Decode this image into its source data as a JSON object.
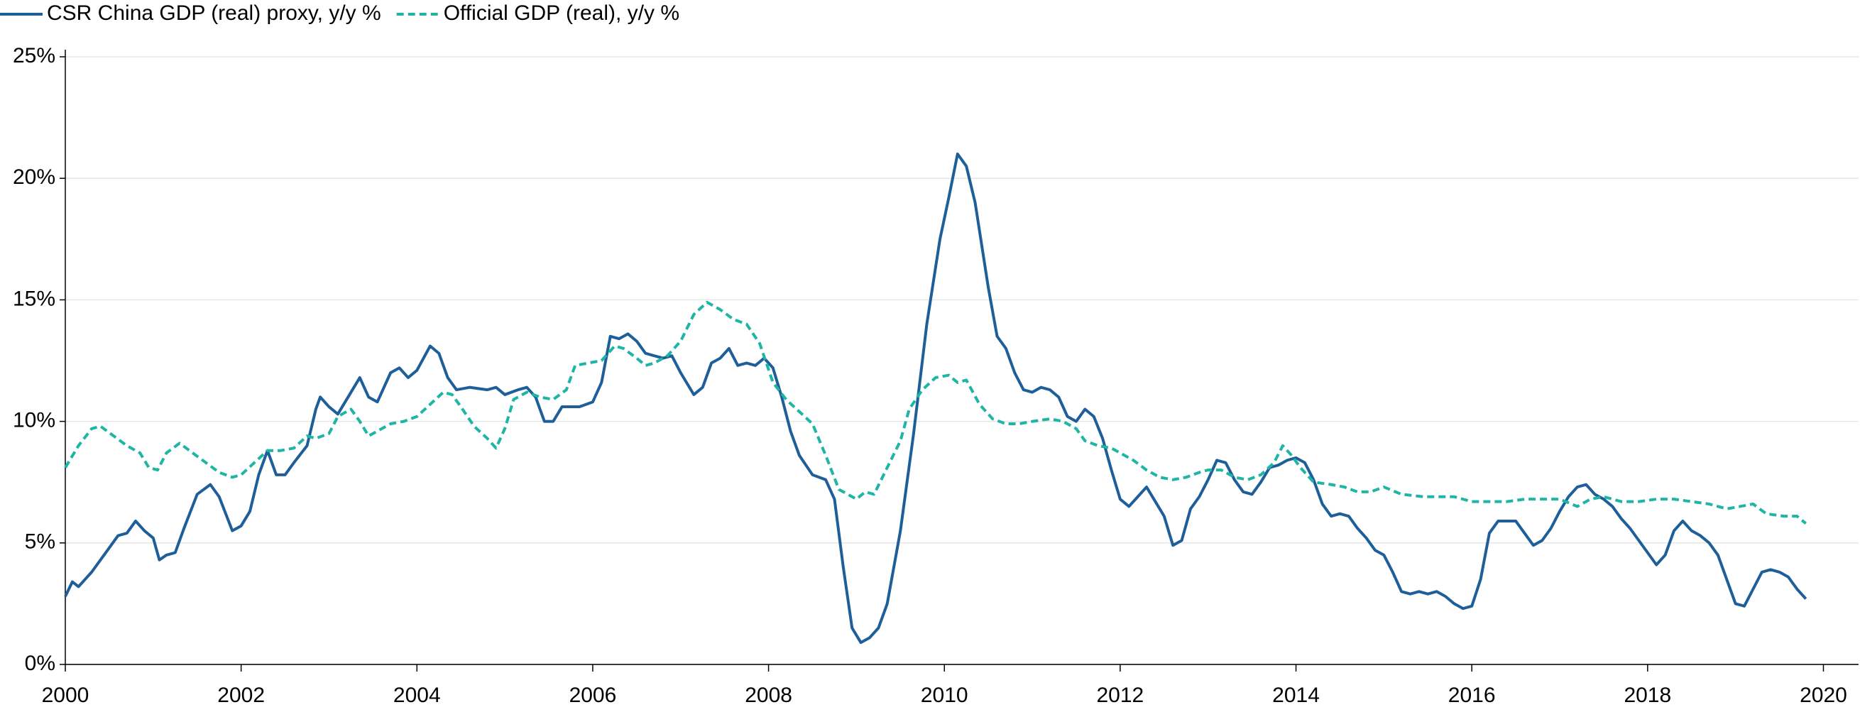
{
  "chart_data": {
    "type": "line",
    "series": [
      {
        "name": "CSR China GDP (real) proxy, y/y %",
        "color": "#1f5f99",
        "dash": "solid",
        "x": [
          2000.0,
          2000.08,
          2000.15,
          2000.3,
          2000.5,
          2000.6,
          2000.7,
          2000.8,
          2000.9,
          2001.0,
          2001.07,
          2001.15,
          2001.25,
          2001.35,
          2001.5,
          2001.65,
          2001.75,
          2001.9,
          2002.0,
          2002.1,
          2002.2,
          2002.3,
          2002.4,
          2002.5,
          2002.6,
          2002.75,
          2002.85,
          2002.9,
          2003.0,
          2003.1,
          2003.2,
          2003.35,
          2003.45,
          2003.55,
          2003.7,
          2003.8,
          2003.9,
          2004.0,
          2004.15,
          2004.25,
          2004.35,
          2004.45,
          2004.6,
          2004.8,
          2004.9,
          2005.0,
          2005.15,
          2005.25,
          2005.35,
          2005.45,
          2005.55,
          2005.65,
          2005.85,
          2006.0,
          2006.1,
          2006.2,
          2006.3,
          2006.4,
          2006.5,
          2006.6,
          2006.7,
          2006.8,
          2006.9,
          2007.0,
          2007.15,
          2007.25,
          2007.35,
          2007.45,
          2007.55,
          2007.65,
          2007.75,
          2007.85,
          2007.95,
          2008.05,
          2008.15,
          2008.25,
          2008.35,
          2008.5,
          2008.65,
          2008.75,
          2008.85,
          2008.95,
          2009.05,
          2009.15,
          2009.25,
          2009.35,
          2009.5,
          2009.65,
          2009.8,
          2009.95,
          2010.05,
          2010.15,
          2010.25,
          2010.35,
          2010.5,
          2010.6,
          2010.7,
          2010.8,
          2010.9,
          2011.0,
          2011.1,
          2011.2,
          2011.3,
          2011.4,
          2011.5,
          2011.6,
          2011.7,
          2011.8,
          2011.9,
          2012.0,
          2012.1,
          2012.2,
          2012.3,
          2012.4,
          2012.5,
          2012.6,
          2012.7,
          2012.8,
          2012.9,
          2013.0,
          2013.1,
          2013.2,
          2013.3,
          2013.4,
          2013.5,
          2013.6,
          2013.7,
          2013.8,
          2013.9,
          2014.0,
          2014.1,
          2014.2,
          2014.3,
          2014.4,
          2014.5,
          2014.6,
          2014.7,
          2014.8,
          2014.9,
          2015.0,
          2015.1,
          2015.2,
          2015.3,
          2015.4,
          2015.5,
          2015.6,
          2015.7,
          2015.8,
          2015.9,
          2016.0,
          2016.1,
          2016.2,
          2016.3,
          2016.4,
          2016.5,
          2016.6,
          2016.7,
          2016.8,
          2016.9,
          2017.0,
          2017.1,
          2017.2,
          2017.3,
          2017.4,
          2017.5,
          2017.6,
          2017.7,
          2017.8,
          2017.9,
          2018.0,
          2018.1,
          2018.2,
          2018.3,
          2018.4,
          2018.5,
          2018.6,
          2018.7,
          2018.8,
          2018.9,
          2019.0,
          2019.1,
          2019.2,
          2019.3,
          2019.4,
          2019.5,
          2019.6,
          2019.7,
          2019.8
        ],
        "values": [
          2.8,
          3.4,
          3.2,
          3.8,
          4.8,
          5.3,
          5.4,
          5.9,
          5.5,
          5.2,
          4.3,
          4.5,
          4.6,
          5.6,
          7.0,
          7.4,
          6.9,
          5.5,
          5.7,
          6.3,
          7.8,
          8.8,
          7.8,
          7.8,
          8.3,
          9.0,
          10.5,
          11.0,
          10.6,
          10.3,
          10.9,
          11.8,
          11.0,
          10.8,
          12.0,
          12.2,
          11.8,
          12.1,
          13.1,
          12.8,
          11.8,
          11.3,
          11.4,
          11.3,
          11.4,
          11.1,
          11.3,
          11.4,
          11.0,
          10.0,
          10.0,
          10.6,
          10.6,
          10.8,
          11.6,
          13.5,
          13.4,
          13.6,
          13.3,
          12.8,
          12.7,
          12.6,
          12.7,
          12.0,
          11.1,
          11.4,
          12.4,
          12.6,
          13.0,
          12.3,
          12.4,
          12.3,
          12.6,
          12.2,
          11.0,
          9.6,
          8.6,
          7.8,
          7.6,
          6.8,
          4.0,
          1.5,
          0.9,
          1.1,
          1.5,
          2.5,
          5.5,
          9.5,
          14,
          17.5,
          19.2,
          21.0,
          20.5,
          19.0,
          15.5,
          13.5,
          13.0,
          12.0,
          11.3,
          11.2,
          11.4,
          11.3,
          11.0,
          10.2,
          10.0,
          10.5,
          10.2,
          9.3,
          8.0,
          6.8,
          6.5,
          6.9,
          7.3,
          6.7,
          6.1,
          4.9,
          5.1,
          6.4,
          6.9,
          7.6,
          8.4,
          8.3,
          7.6,
          7.1,
          7.0,
          7.5,
          8.1,
          8.2,
          8.4,
          8.5,
          8.3,
          7.6,
          6.6,
          6.1,
          6.2,
          6.1,
          5.6,
          5.2,
          4.7,
          4.5,
          3.8,
          3.0,
          2.9,
          3.0,
          2.9,
          3.0,
          2.8,
          2.5,
          2.3,
          2.4,
          3.5,
          5.4,
          5.9,
          5.9,
          5.9,
          5.4,
          4.9,
          5.1,
          5.6,
          6.3,
          6.9,
          7.3,
          7.4,
          7.0,
          6.8,
          6.5,
          6.0,
          5.6,
          5.1,
          4.6,
          4.1,
          4.5,
          5.5,
          5.9,
          5.5,
          5.3,
          5.0,
          4.5,
          3.5,
          2.5,
          2.4,
          3.1,
          3.8,
          3.9,
          3.8,
          3.6,
          3.1,
          2.7
        ]
      },
      {
        "name": "Official GDP (real), y/y %",
        "color": "#1fb5a5",
        "dash": "dashed",
        "x": [
          2000.0,
          2000.15,
          2000.3,
          2000.4,
          2000.55,
          2000.7,
          2000.85,
          2000.95,
          2001.05,
          2001.15,
          2001.3,
          2001.45,
          2001.6,
          2001.75,
          2001.9,
          2002.0,
          2002.15,
          2002.3,
          2002.45,
          2002.6,
          2002.75,
          2002.85,
          2003.0,
          2003.1,
          2003.25,
          2003.35,
          2003.45,
          2003.55,
          2003.7,
          2003.85,
          2004.0,
          2004.15,
          2004.3,
          2004.4,
          2004.5,
          2004.65,
          2004.8,
          2004.9,
          2005.0,
          2005.1,
          2005.25,
          2005.4,
          2005.55,
          2005.7,
          2005.8,
          2005.95,
          2006.1,
          2006.25,
          2006.35,
          2006.5,
          2006.6,
          2006.7,
          2006.85,
          2007.0,
          2007.15,
          2007.3,
          2007.45,
          2007.6,
          2007.75,
          2007.9,
          2008.05,
          2008.2,
          2008.35,
          2008.5,
          2008.65,
          2008.8,
          2008.9,
          2009.0,
          2009.1,
          2009.2,
          2009.35,
          2009.5,
          2009.6,
          2009.75,
          2009.9,
          2010.05,
          2010.15,
          2010.25,
          2010.4,
          2010.55,
          2010.7,
          2010.85,
          2011.0,
          2011.2,
          2011.35,
          2011.5,
          2011.6,
          2011.75,
          2011.9,
          2012.0,
          2012.15,
          2012.3,
          2012.45,
          2012.6,
          2012.75,
          2012.9,
          2013.0,
          2013.15,
          2013.3,
          2013.45,
          2013.6,
          2013.75,
          2013.85,
          2013.95,
          2014.05,
          2014.2,
          2014.4,
          2014.55,
          2014.7,
          2014.85,
          2015.0,
          2015.2,
          2015.45,
          2015.6,
          2015.8,
          2016.0,
          2016.2,
          2016.4,
          2016.6,
          2016.8,
          2017.0,
          2017.2,
          2017.35,
          2017.5,
          2017.7,
          2017.9,
          2018.1,
          2018.3,
          2018.5,
          2018.7,
          2018.9,
          2019.05,
          2019.2,
          2019.35,
          2019.55,
          2019.7,
          2019.8
        ],
        "values": [
          8.1,
          9.0,
          9.7,
          9.8,
          9.4,
          9.0,
          8.7,
          8.1,
          8.0,
          8.7,
          9.1,
          8.7,
          8.3,
          7.9,
          7.7,
          7.8,
          8.3,
          8.8,
          8.8,
          8.9,
          9.4,
          9.3,
          9.5,
          10.2,
          10.5,
          10.0,
          9.4,
          9.6,
          9.9,
          10.0,
          10.2,
          10.7,
          11.2,
          11.1,
          10.6,
          9.8,
          9.3,
          8.9,
          9.7,
          10.9,
          11.2,
          11.0,
          10.9,
          11.3,
          12.3,
          12.4,
          12.5,
          13.1,
          13.0,
          12.6,
          12.3,
          12.4,
          12.7,
          13.3,
          14.4,
          14.9,
          14.6,
          14.2,
          14.0,
          13.2,
          11.6,
          10.9,
          10.4,
          9.9,
          8.6,
          7.2,
          7.0,
          6.8,
          7.1,
          7.0,
          8.1,
          9.2,
          10.5,
          11.3,
          11.8,
          11.9,
          11.6,
          11.7,
          10.7,
          10.1,
          9.9,
          9.9,
          10.0,
          10.1,
          10.0,
          9.7,
          9.2,
          9.0,
          8.9,
          8.7,
          8.4,
          8.0,
          7.7,
          7.6,
          7.7,
          7.9,
          8.0,
          8.0,
          7.7,
          7.6,
          7.8,
          8.3,
          9.0,
          8.6,
          8.1,
          7.5,
          7.4,
          7.3,
          7.1,
          7.1,
          7.3,
          7.0,
          6.9,
          6.9,
          6.9,
          6.7,
          6.7,
          6.7,
          6.8,
          6.8,
          6.8,
          6.5,
          6.8,
          6.9,
          6.7,
          6.7,
          6.8,
          6.8,
          6.7,
          6.6,
          6.4,
          6.5,
          6.6,
          6.2,
          6.1,
          6.1,
          5.8
        ]
      }
    ],
    "xlim": [
      2000,
      2020.4
    ],
    "xticks": [
      2000,
      2002,
      2004,
      2006,
      2008,
      2010,
      2012,
      2014,
      2016,
      2018,
      2020
    ],
    "ylim": [
      0,
      25
    ],
    "yticks": [
      {
        "value": 0,
        "label": "0%"
      },
      {
        "value": 5,
        "label": "5%"
      },
      {
        "value": 10,
        "label": "10%"
      },
      {
        "value": 15,
        "label": "15%"
      },
      {
        "value": 20,
        "label": "20%"
      },
      {
        "value": 25,
        "label": "25%"
      }
    ],
    "grid": true,
    "legend": "top-left"
  }
}
